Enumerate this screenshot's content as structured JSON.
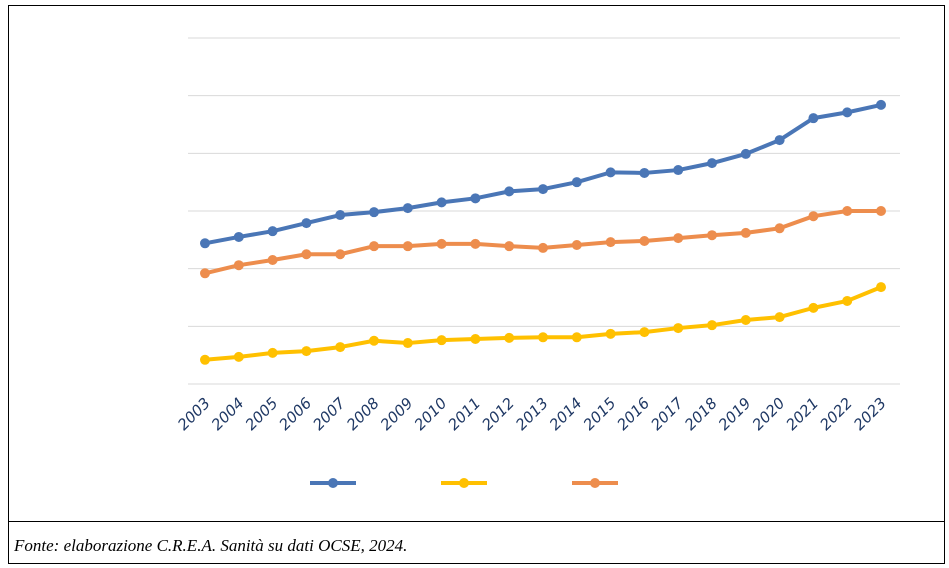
{
  "chart_data": {
    "type": "line",
    "categories": [
      "2003",
      "2004",
      "2005",
      "2006",
      "2007",
      "2008",
      "2009",
      "2010",
      "2011",
      "2012",
      "2013",
      "2014",
      "2015",
      "2016",
      "2017",
      "2018",
      "2019",
      "2020",
      "2021",
      "2022",
      "2023"
    ],
    "series": [
      {
        "color": "#4a76b6",
        "values": [
          2.44,
          2.55,
          2.65,
          2.79,
          2.93,
          2.98,
          3.05,
          3.15,
          3.22,
          3.34,
          3.38,
          3.5,
          3.67,
          3.66,
          3.71,
          3.83,
          3.99,
          4.23,
          4.61,
          4.71,
          4.84
        ]
      },
      {
        "color": "#ffc000",
        "values": [
          0.42,
          0.47,
          0.54,
          0.57,
          0.64,
          0.75,
          0.71,
          0.76,
          0.78,
          0.8,
          0.81,
          0.81,
          0.87,
          0.9,
          0.97,
          1.02,
          1.11,
          1.16,
          1.32,
          1.44,
          1.68
        ]
      },
      {
        "color": "#ed8d4d",
        "values": [
          1.92,
          2.06,
          2.15,
          2.25,
          2.25,
          2.39,
          2.39,
          2.43,
          2.43,
          2.39,
          2.36,
          2.41,
          2.46,
          2.48,
          2.53,
          2.58,
          2.62,
          2.7,
          2.91,
          3.0,
          3.0
        ]
      }
    ],
    "ylim": [
      0,
      6
    ],
    "yticks": [
      0,
      1,
      2,
      3,
      4,
      5,
      6
    ],
    "grid": true
  },
  "source_note": "Fonte: elaborazione C.R.E.A. Sanità su dati OCSE, 2024."
}
